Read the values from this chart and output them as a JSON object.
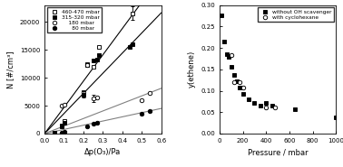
{
  "left": {
    "xlabel": "Δp(O₃)/Pa",
    "ylabel": "N [#/cm³]",
    "xlim": [
      0.0,
      0.6
    ],
    "ylim": [
      0,
      23000
    ],
    "xticks": [
      0.0,
      0.1,
      0.2,
      0.3,
      0.4,
      0.5,
      0.6
    ],
    "yticks": [
      0,
      5000,
      10000,
      15000,
      20000
    ],
    "lines": [
      {
        "slope": 47000,
        "color": "black",
        "lw": 0.8
      },
      {
        "slope": 36000,
        "color": "black",
        "lw": 0.8
      },
      {
        "slope": 13500,
        "color": "gray",
        "lw": 0.8
      },
      {
        "slope": 7500,
        "color": "gray",
        "lw": 0.8
      }
    ],
    "series": [
      {
        "label": "460-470 mbar",
        "marker": "s",
        "filled": false,
        "x": [
          0.05,
          0.09,
          0.1,
          0.2,
          0.22,
          0.25,
          0.28,
          0.45
        ],
        "y": [
          200,
          1500,
          2200,
          7500,
          12500,
          12000,
          15500,
          21500
        ],
        "yerr": [
          null,
          null,
          null,
          null,
          null,
          null,
          null,
          1200
        ]
      },
      {
        "label": "315-320 mbar",
        "marker": "s",
        "filled": true,
        "x": [
          0.05,
          0.09,
          0.1,
          0.2,
          0.22,
          0.25,
          0.27,
          0.28,
          0.44,
          0.45
        ],
        "y": [
          100,
          1300,
          2000,
          7000,
          12200,
          13000,
          13200,
          14000,
          15500,
          16000
        ],
        "yerr": [
          null,
          null,
          null,
          600,
          null,
          null,
          null,
          null,
          null,
          null
        ]
      },
      {
        "label": "    180 mbar",
        "marker": "o",
        "filled": false,
        "x": [
          0.09,
          0.1,
          0.22,
          0.25,
          0.27,
          0.5,
          0.54
        ],
        "y": [
          5000,
          5200,
          12200,
          6300,
          6500,
          6000,
          7200
        ],
        "yerr": [
          null,
          null,
          null,
          600,
          null,
          null,
          null
        ]
      },
      {
        "label": "      80 mbar",
        "marker": "o",
        "filled": true,
        "x": [
          0.09,
          0.1,
          0.22,
          0.25,
          0.27,
          0.5,
          0.54
        ],
        "y": [
          150,
          300,
          1300,
          1700,
          1900,
          3600,
          4100
        ],
        "yerr": [
          null,
          null,
          null,
          null,
          null,
          null,
          null
        ]
      }
    ]
  },
  "right": {
    "xlabel": "Pressure / mbar",
    "ylabel": "y(ethene)",
    "xlim": [
      0,
      1000
    ],
    "ylim": [
      0.0,
      0.3
    ],
    "xticks": [
      0,
      200,
      400,
      600,
      800,
      1000
    ],
    "yticks": [
      0.0,
      0.05,
      0.1,
      0.15,
      0.2,
      0.25,
      0.3
    ],
    "series": [
      {
        "label": "without OH scavenger",
        "marker": "s",
        "filled": true,
        "x": [
          20,
          40,
          60,
          80,
          100,
          125,
          150,
          175,
          200,
          250,
          300,
          350,
          400,
          450,
          650,
          1000
        ],
        "y": [
          0.275,
          0.215,
          0.185,
          0.178,
          0.155,
          0.137,
          0.122,
          0.107,
          0.092,
          0.08,
          0.072,
          0.065,
          0.072,
          0.065,
          0.057,
          0.037
        ]
      },
      {
        "label": "with cyclohexane",
        "marker": "o",
        "filled": false,
        "x": [
          100,
          125,
          175,
          200,
          400,
          475
        ],
        "y": [
          0.183,
          0.12,
          0.12,
          0.108,
          0.062,
          0.062
        ]
      }
    ]
  }
}
